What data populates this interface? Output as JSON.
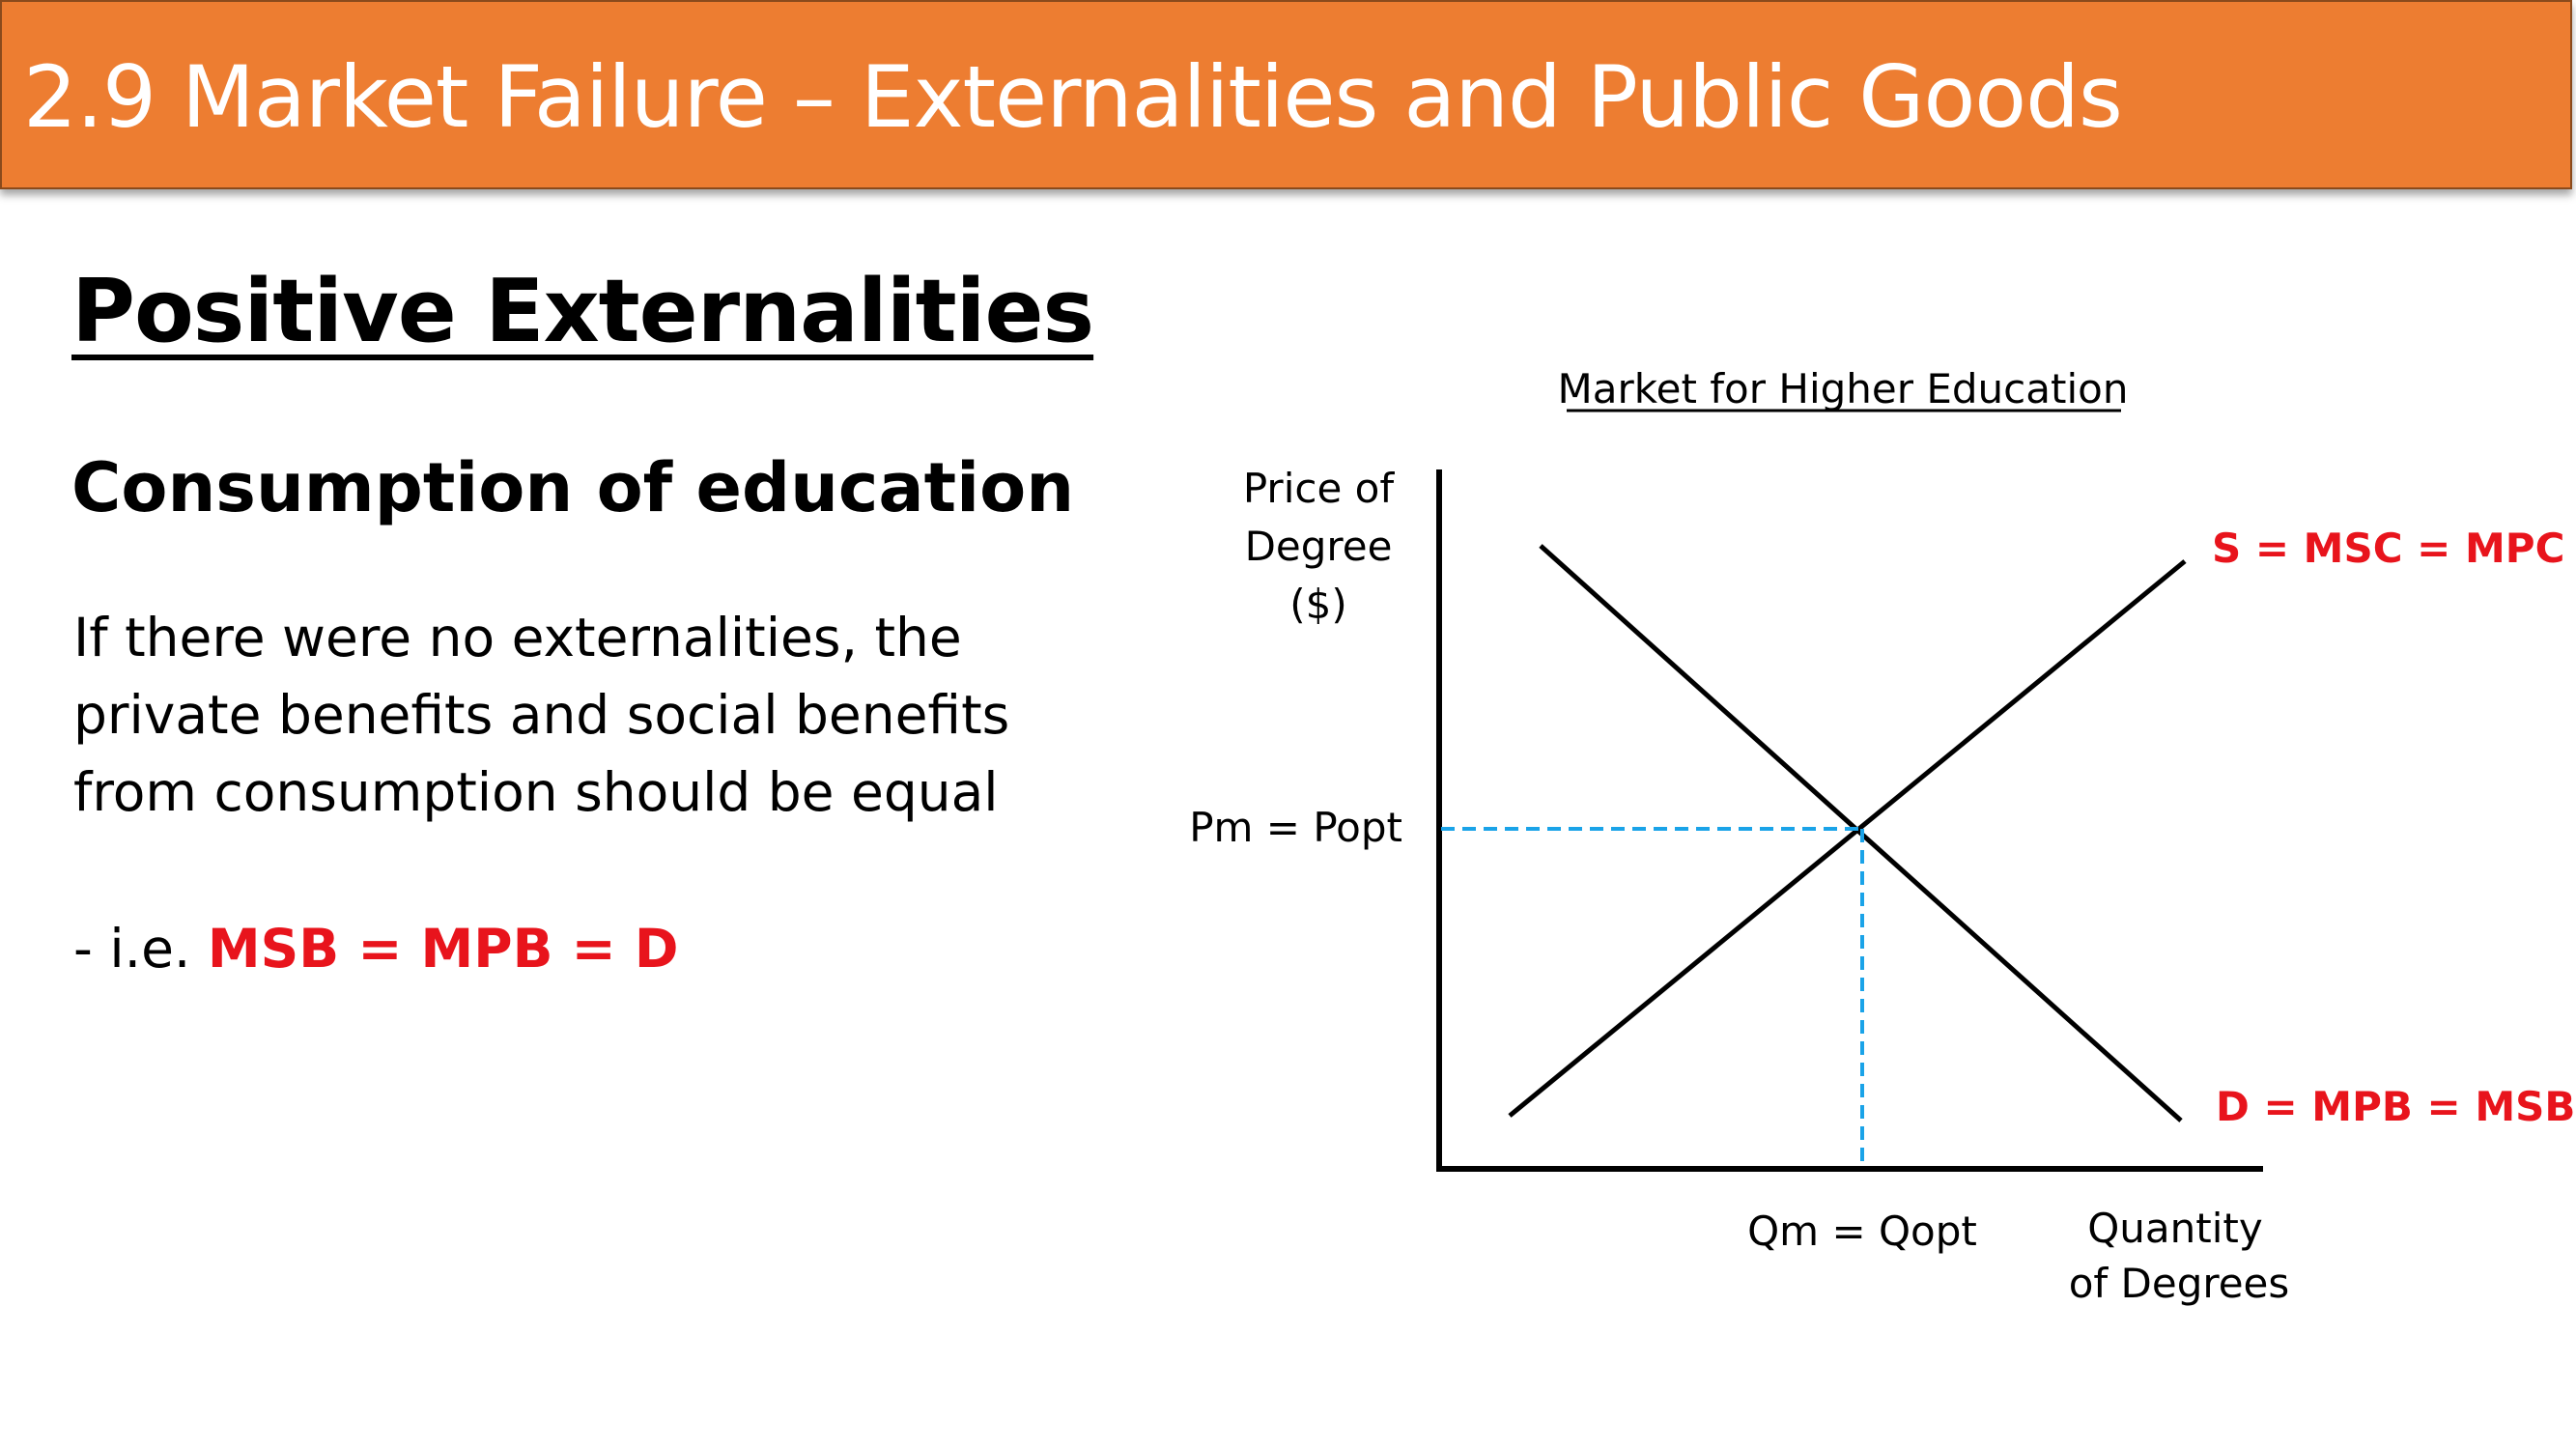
{
  "slide": {
    "title": "2.9 Market Failure – Externalities and Public Goods",
    "heading": "Positive Externalities",
    "subheading": "Consumption of education",
    "body_lines": [
      "If there were no externalities, the",
      "private benefits and social benefits",
      "from consumption should be equal"
    ],
    "equation_prefix": "- i.e. ",
    "equation": "MSB = MPB = D"
  },
  "diagram": {
    "title": "Market for Higher Education",
    "y_axis_label": [
      "Price of",
      "Degree",
      "($)"
    ],
    "x_axis_label": [
      "Quantity",
      "of Degrees"
    ],
    "price_label": "Pm = Popt",
    "quantity_label": "Qm = Qopt",
    "supply_label": "S = MSC = MPC",
    "demand_label": "D = MPB = MSB",
    "supply_color": "#000000",
    "demand_color": "#000000",
    "equilibrium_line_color": "#1aa3e8",
    "curve_label_color": "#e8141c",
    "accent_color": "#ed7d31",
    "supply_slope": "upward",
    "demand_slope": "downward"
  }
}
